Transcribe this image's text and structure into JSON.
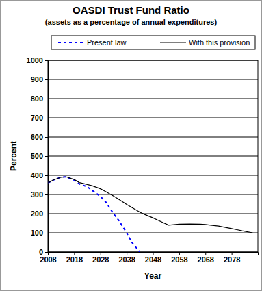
{
  "chart_data": {
    "type": "line",
    "title": "OASDI Trust Fund Ratio",
    "subtitle": "(assets as a percentage of annual expenditures)",
    "x_label": "Year",
    "y_label": "Percent",
    "x": [
      2008,
      2010,
      2013,
      2015,
      2018,
      2020,
      2023,
      2025,
      2028,
      2030,
      2033,
      2035,
      2038,
      2040,
      2043,
      2045,
      2048,
      2050,
      2054,
      2058,
      2062,
      2066,
      2068,
      2070,
      2073,
      2075,
      2078,
      2080,
      2082,
      2086
    ],
    "series": [
      {
        "name": "Present law",
        "color": "#0000ff",
        "line_style": "dashed",
        "values": [
          360,
          375,
          390,
          392,
          375,
          355,
          340,
          320,
          290,
          262,
          200,
          165,
          100,
          50,
          0,
          null,
          null,
          null,
          null,
          null,
          null,
          null,
          null,
          null,
          null,
          null,
          null,
          null,
          null,
          null
        ]
      },
      {
        "name": "With this provision",
        "color": "#000000",
        "line_style": "solid",
        "values": [
          360,
          375,
          390,
          392,
          378,
          362,
          352,
          345,
          330,
          315,
          292,
          275,
          248,
          232,
          208,
          195,
          178,
          165,
          140,
          145,
          146,
          145,
          143,
          140,
          135,
          130,
          122,
          116,
          110,
          100
        ]
      }
    ],
    "xlim": [
      2008,
      2088
    ],
    "xticks": [
      2008,
      2018,
      2028,
      2038,
      2048,
      2058,
      2068,
      2078
    ],
    "ylim": [
      0,
      1000
    ],
    "yticks": [
      0,
      100,
      200,
      300,
      400,
      500,
      600,
      700,
      800,
      900,
      1000
    ],
    "grid": true,
    "legend": "top"
  }
}
